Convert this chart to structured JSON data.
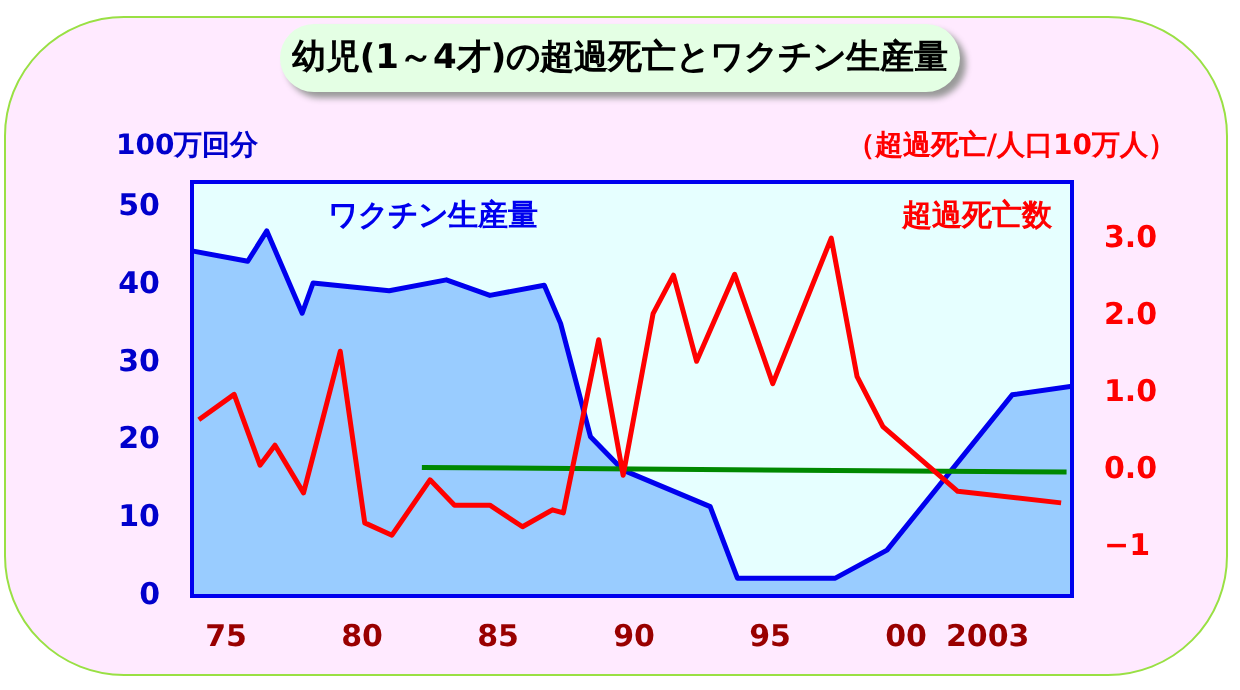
{
  "chart_data": {
    "type": "line",
    "title": "幼児(1～4才)の超過死亡とワクチン生産量",
    "ylabel": "100万回分",
    "y2label": "（超過死亡/人口10万人）",
    "xlim": [
      1973.75,
      2006.1
    ],
    "xticks": [
      {
        "value": 1975,
        "label": "75"
      },
      {
        "value": 1980,
        "label": "80"
      },
      {
        "value": 1985,
        "label": "85"
      },
      {
        "value": 1990,
        "label": "90"
      },
      {
        "value": 1995,
        "label": "95"
      },
      {
        "value": 2000,
        "label": "00"
      },
      2003
    ],
    "ylim": [
      0,
      53.3
    ],
    "yticks": [
      0,
      10,
      20,
      30,
      40,
      50
    ],
    "y2lim": [
      -1.64,
      3.74
    ],
    "y2ticks": [
      {
        "value": 3,
        "label": "3.0"
      },
      {
        "value": 2,
        "label": "2.0"
      },
      {
        "value": 1,
        "label": "1.0"
      },
      {
        "value": 0,
        "label": "0.0"
      },
      {
        "value": -1,
        "label": "−1"
      }
    ],
    "series": [
      {
        "name": "ワクチン生産量",
        "type": "area",
        "color": "#0000ee",
        "x": [
          1973.8,
          1975.8,
          1976.5,
          1977.8,
          1978.2,
          1981.0,
          1983.1,
          1984.7,
          1986.7,
          1987.3,
          1988.4,
          1989.6,
          1992.8,
          1993.8,
          1997.4,
          1999.3,
          2003.9,
          2006.1
        ],
        "values": [
          44.4,
          43.1,
          47.0,
          36.4,
          40.3,
          39.3,
          40.7,
          38.7,
          40.0,
          35.1,
          20.5,
          16.2,
          11.5,
          2.3,
          2.3,
          5.9,
          25.9,
          27.0
        ]
      },
      {
        "name": "超過死亡数",
        "axis": "y2",
        "color": "#ff0000",
        "x": [
          1974.0,
          1975.3,
          1976.25,
          1976.8,
          1977.85,
          1979.2,
          1980.1,
          1981.1,
          1982.5,
          1983.4,
          1984.7,
          1985.9,
          1987.0,
          1987.4,
          1988.7,
          1989.6,
          1990.7,
          1991.45,
          1992.3,
          1993.7,
          1995.1,
          1997.25,
          1998.2,
          1999.15,
          2001.9,
          2005.7
        ],
        "values": [
          0.65,
          0.98,
          0.06,
          0.32,
          -0.3,
          1.54,
          -0.69,
          -0.85,
          -0.13,
          -0.46,
          -0.46,
          -0.74,
          -0.52,
          -0.56,
          1.69,
          -0.07,
          2.03,
          2.53,
          1.41,
          2.54,
          1.12,
          3.01,
          1.21,
          0.56,
          -0.28,
          -0.43
        ]
      },
      {
        "axis": "y2",
        "color": "#008800",
        "x": [
          1982.2,
          2005.9
        ],
        "values": [
          0.03,
          -0.03
        ]
      }
    ],
    "legend": false,
    "marker": "none"
  }
}
